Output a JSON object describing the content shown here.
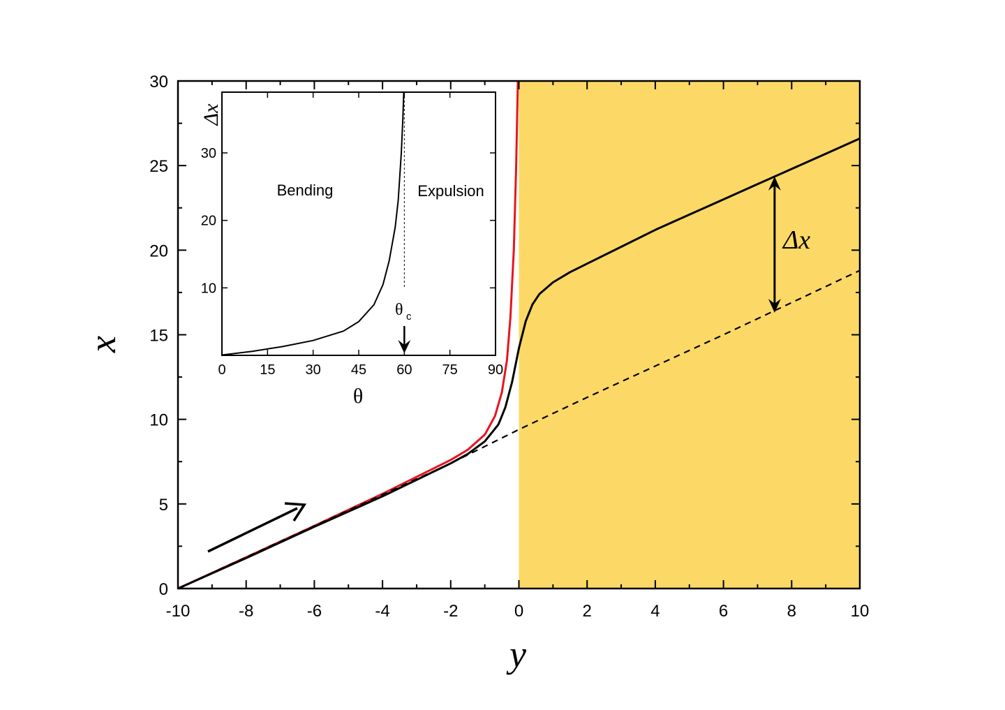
{
  "chart_data": [
    {
      "type": "line",
      "title": "",
      "xlabel": "y",
      "ylabel": "x",
      "xlim": [
        -10,
        10
      ],
      "ylim": [
        0,
        30
      ],
      "xticks": [
        "-10",
        "-8",
        "-6",
        "-4",
        "-2",
        "0",
        "2",
        "4",
        "6",
        "8",
        "10"
      ],
      "yticks": [
        "0",
        "5",
        "10",
        "15",
        "20",
        "25",
        "30"
      ],
      "shaded_region": {
        "x_from": 0,
        "x_to": 10,
        "color": "#fcd966"
      },
      "colors": {
        "red_curve": "#e8141e",
        "black_curve": "#000000",
        "dashed_line": "#000000"
      },
      "series": [
        {
          "style": "solid-red",
          "x": [
            -10,
            -8,
            -6,
            -4,
            -2,
            -1.5,
            -1,
            -0.7,
            -0.5,
            -0.35,
            -0.25,
            -0.15,
            -0.08,
            -0.03
          ],
          "y": [
            0,
            1.85,
            3.7,
            5.6,
            7.6,
            8.2,
            9.1,
            10.2,
            11.6,
            13.5,
            16.0,
            20.0,
            25.0,
            30.0
          ]
        },
        {
          "style": "solid-black",
          "x": [
            -10,
            -8,
            -6,
            -4,
            -2,
            -1.5,
            -1,
            -0.6,
            -0.4,
            -0.2,
            0,
            0.2,
            0.4,
            0.6,
            1.0,
            1.5,
            2,
            3,
            4,
            5,
            6,
            7,
            7.5,
            8,
            9,
            10
          ],
          "y": [
            0,
            1.8,
            3.65,
            5.45,
            7.4,
            7.95,
            8.7,
            9.7,
            10.7,
            12.2,
            14.2,
            15.8,
            16.8,
            17.4,
            18.1,
            18.7,
            19.2,
            20.2,
            21.2,
            22.1,
            23.0,
            23.9,
            24.35,
            24.8,
            25.7,
            26.6
          ]
        },
        {
          "style": "dashed-black",
          "x": [
            -10,
            -6,
            -2,
            0,
            2,
            6,
            10
          ],
          "y": [
            0,
            3.7,
            7.4,
            9.4,
            11.3,
            15.0,
            18.8
          ]
        }
      ],
      "annotations": [
        {
          "type": "arrow",
          "direction": "along curve",
          "label": ""
        },
        {
          "type": "double-arrow",
          "at_x": 7.5,
          "from_y": 16.3,
          "to_y": 24.35,
          "label": "Δx"
        }
      ]
    },
    {
      "type": "line",
      "title": "",
      "xlabel": "θ",
      "ylabel": "Δx",
      "xlim": [
        0,
        90
      ],
      "ylim": [
        0,
        39
      ],
      "xticks": [
        "0",
        "15",
        "30",
        "45",
        "60",
        "75",
        "90"
      ],
      "yticks": [
        "10",
        "20",
        "30"
      ],
      "region_labels": [
        "Bending",
        "Expulsion"
      ],
      "critical_marker": {
        "theta": 60,
        "label_main": "θ",
        "label_sub": "c"
      },
      "series": [
        {
          "style": "solid-black",
          "x": [
            0,
            10,
            20,
            30,
            40,
            45,
            50,
            53,
            55,
            57,
            58,
            59,
            59.5,
            59.8
          ],
          "y": [
            0.05,
            0.6,
            1.3,
            2.2,
            3.6,
            5.0,
            7.5,
            10.5,
            14.0,
            19.0,
            23.0,
            30.0,
            35.0,
            39.0
          ]
        }
      ]
    }
  ]
}
